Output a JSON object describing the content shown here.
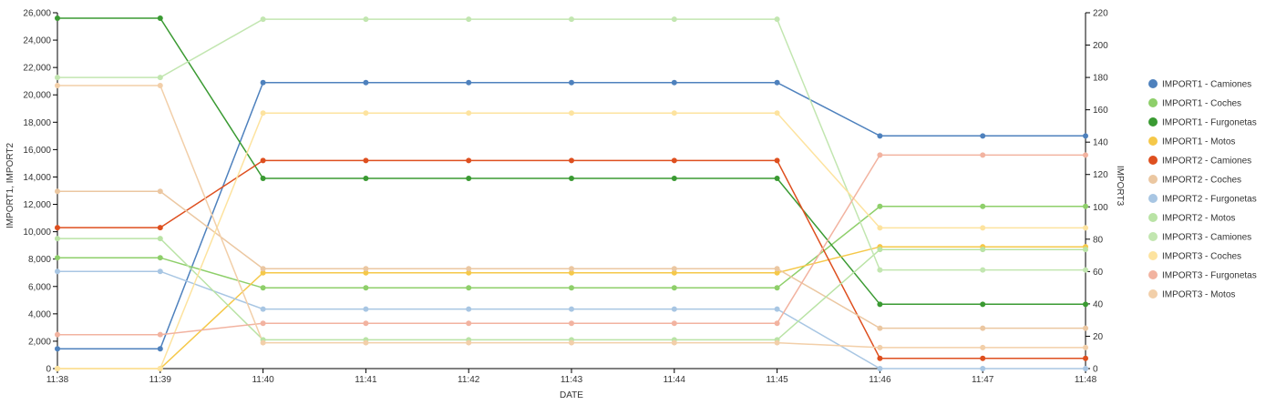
{
  "chart_data": {
    "type": "line",
    "xlabel": "DATE",
    "ylabel_left": "IMPORT1, IMPORT2",
    "ylabel_right": "IMPORT3",
    "x": [
      "11:38",
      "11:39",
      "11:40",
      "11:41",
      "11:42",
      "11:43",
      "11:44",
      "11:45",
      "11:46",
      "11:47",
      "11:48"
    ],
    "ylim_left": [
      0,
      26000
    ],
    "ylim_right": [
      0,
      220
    ],
    "yticks_left": [
      "0",
      "2,000",
      "4,000",
      "6,000",
      "8,000",
      "10,000",
      "12,000",
      "14,000",
      "16,000",
      "18,000",
      "20,000",
      "22,000",
      "24,000",
      "26,000"
    ],
    "yticks_right": [
      "0",
      "20",
      "40",
      "60",
      "80",
      "100",
      "120",
      "140",
      "160",
      "180",
      "200",
      "220"
    ],
    "legend_position": "right",
    "series": [
      {
        "name": "IMPORT1 - Camiones",
        "axis": "left",
        "color": "#4e81bd",
        "values": [
          1450,
          1450,
          20900,
          20900,
          20900,
          20900,
          20900,
          20900,
          17000,
          17000,
          17000
        ]
      },
      {
        "name": "IMPORT1 - Coches",
        "axis": "left",
        "color": "#8ecf6a",
        "values": [
          8100,
          8100,
          5900,
          5900,
          5900,
          5900,
          5900,
          5900,
          11850,
          11850,
          11850
        ]
      },
      {
        "name": "IMPORT1 - Furgonetas",
        "axis": "left",
        "color": "#3a9a32",
        "values": [
          25600,
          25600,
          13900,
          13900,
          13900,
          13900,
          13900,
          13900,
          4700,
          4700,
          4700
        ]
      },
      {
        "name": "IMPORT1 - Motos",
        "axis": "left",
        "color": "#f5c849",
        "values": [
          0,
          0,
          7000,
          7000,
          7000,
          7000,
          7000,
          7000,
          8900,
          8900,
          8900
        ]
      },
      {
        "name": "IMPORT2 - Camiones",
        "axis": "left",
        "color": "#de4f1f",
        "values": [
          10300,
          10300,
          15200,
          15200,
          15200,
          15200,
          15200,
          15200,
          750,
          750,
          750
        ]
      },
      {
        "name": "IMPORT2 - Coches",
        "axis": "left",
        "color": "#ebc7a1",
        "values": [
          12950,
          12950,
          7300,
          7300,
          7300,
          7300,
          7300,
          7300,
          2950,
          2950,
          2950
        ]
      },
      {
        "name": "IMPORT2 - Furgonetas",
        "axis": "left",
        "color": "#a8c6e3",
        "values": [
          7100,
          7100,
          4350,
          4350,
          4350,
          4350,
          4350,
          4350,
          0,
          0,
          0
        ]
      },
      {
        "name": "IMPORT2 - Motos",
        "axis": "left",
        "color": "#b9e3a5",
        "values": [
          9500,
          9500,
          2100,
          2100,
          2100,
          2100,
          2100,
          2100,
          8700,
          8700,
          8700
        ]
      },
      {
        "name": "IMPORT3 - Camiones",
        "axis": "right",
        "color": "#c2e6b0",
        "values": [
          180,
          180,
          216,
          216,
          216,
          216,
          216,
          216,
          61,
          61,
          61
        ]
      },
      {
        "name": "IMPORT3 - Coches",
        "axis": "right",
        "color": "#fde39f",
        "values": [
          0,
          0,
          158,
          158,
          158,
          158,
          158,
          158,
          87,
          87,
          87
        ]
      },
      {
        "name": "IMPORT3 - Furgonetas",
        "axis": "right",
        "color": "#f2b3a0",
        "values": [
          21,
          21,
          28,
          28,
          28,
          28,
          28,
          28,
          132,
          132,
          132
        ]
      },
      {
        "name": "IMPORT3 - Motos",
        "axis": "right",
        "color": "#f2cfa9",
        "values": [
          175,
          175,
          16,
          16,
          16,
          16,
          16,
          16,
          13,
          13,
          13
        ]
      }
    ]
  }
}
